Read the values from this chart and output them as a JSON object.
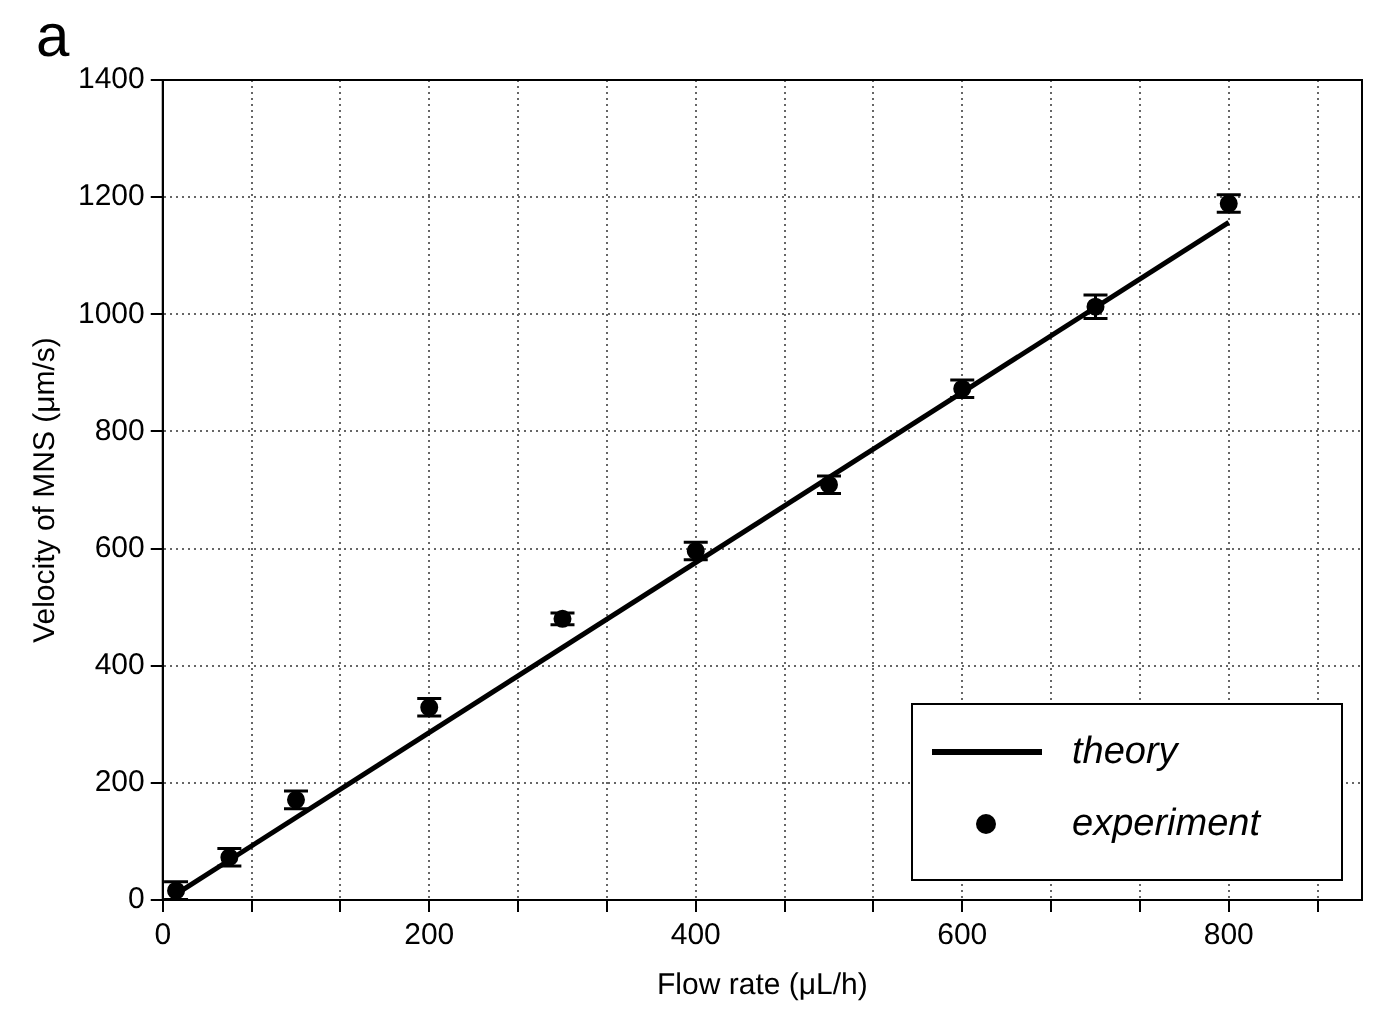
{
  "chart_data": {
    "type": "scatter",
    "title": "a",
    "xlabel": "Flow rate (μL/h)",
    "ylabel": "Velocity of MNS (μm/s)",
    "xlim": [
      0,
      900
    ],
    "xticks": [
      0,
      {
        "value": 66.7,
        "label": null
      },
      {
        "value": 133.3,
        "label": null
      },
      200,
      {
        "value": 266.7,
        "label": null
      },
      {
        "value": 333.3,
        "label": null
      },
      400,
      {
        "value": 466.7,
        "label": null
      },
      {
        "value": 533.3,
        "label": null
      },
      600,
      {
        "value": 666.7,
        "label": null
      },
      {
        "value": 733.3,
        "label": null
      },
      800,
      {
        "value": 866.7,
        "label": null
      }
    ],
    "ylim": [
      0,
      1400
    ],
    "yticks": [
      0,
      200,
      400,
      600,
      800,
      1000,
      1200,
      1400
    ],
    "grid": true,
    "legend": "bottom right",
    "series": [
      {
        "name": "theory",
        "type": "line",
        "color": "#000000",
        "marker": "none",
        "line_style": "solid",
        "x": [
          10,
          800
        ],
        "values": [
          10,
          1157
        ]
      },
      {
        "name": "experiment",
        "type": "scatter",
        "color": "#000000",
        "marker": "circle",
        "x": [
          10,
          50,
          100,
          200,
          300,
          400,
          500,
          600,
          700,
          800
        ],
        "values": [
          16,
          73,
          171,
          329,
          480,
          596,
          709,
          873,
          1013,
          1189
        ],
        "errors": [
          15,
          15,
          15,
          15,
          10,
          15,
          15,
          15,
          20,
          15
        ]
      }
    ]
  }
}
